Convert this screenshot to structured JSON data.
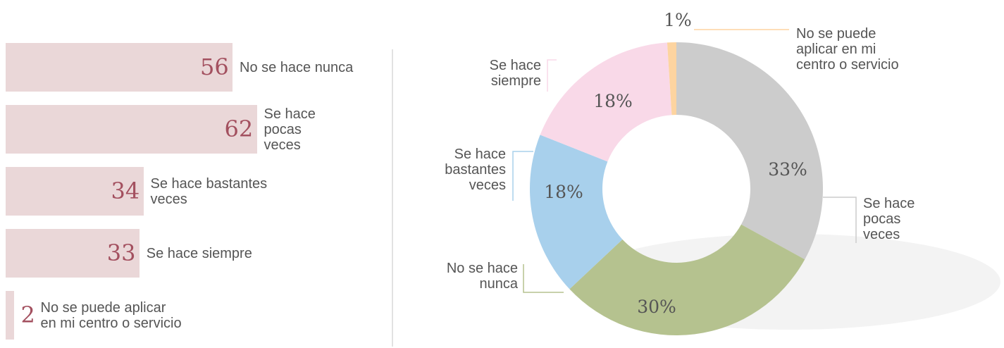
{
  "chart_data": [
    {
      "type": "bar",
      "categories": [
        "No se hace nunca",
        "Se hace pocas veces",
        "Se hace bastantes veces",
        "Se hace siempre",
        "No se puede aplicar en mi centro o servicio"
      ],
      "values": [
        56,
        62,
        34,
        33,
        2
      ],
      "color": "#ead7d8"
    },
    {
      "type": "pie",
      "categories": [
        "Se hace pocas veces",
        "No se hace nunca",
        "Se hace bastantes veces",
        "Se hace siempre",
        "No se puede aplicar en mi centro o servicio"
      ],
      "values": [
        33,
        30,
        18,
        18,
        1
      ],
      "value_labels": [
        "33%",
        "30%",
        "18%",
        "18%",
        "1%"
      ],
      "colors": [
        "#cccccc",
        "#b5c28f",
        "#a8d0ec",
        "#f9d9e8",
        "#fdd4a0"
      ]
    }
  ]
}
